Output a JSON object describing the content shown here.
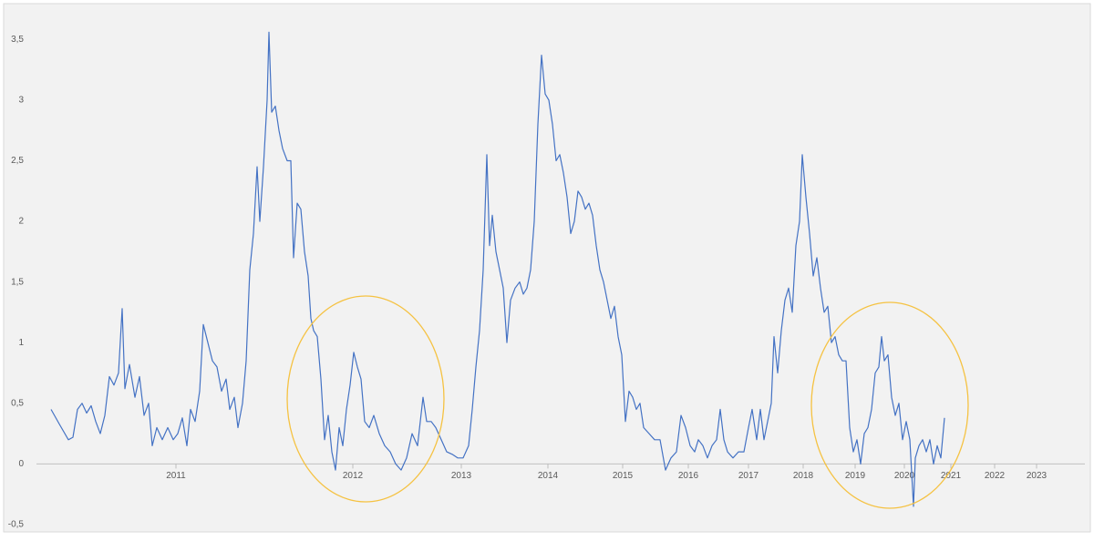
{
  "chart_data": {
    "type": "line",
    "x": [
      56,
      65,
      75,
      80,
      85,
      90,
      95,
      100,
      105,
      110,
      115,
      120,
      125,
      130,
      134,
      137,
      142,
      148,
      153,
      158,
      163,
      167,
      172,
      178,
      184,
      190,
      195,
      200,
      205,
      209,
      214,
      219,
      223,
      228,
      233,
      238,
      243,
      248,
      252,
      257,
      261,
      266,
      270,
      274,
      278,
      282,
      285,
      289,
      293,
      295,
      298,
      302,
      306,
      310,
      315,
      319,
      322,
      326,
      330,
      334,
      338,
      341,
      344,
      348,
      352,
      356,
      360,
      364,
      368,
      372,
      376,
      380,
      384,
      388,
      392,
      396,
      400,
      405,
      410,
      416,
      422,
      428,
      434,
      440,
      446,
      452,
      458,
      464,
      468,
      473,
      478,
      484,
      490,
      496,
      502,
      508,
      514,
      518,
      522,
      526,
      530,
      534,
      537,
      540,
      544,
      548,
      552,
      556,
      560,
      565,
      570,
      574,
      578,
      582,
      586,
      590,
      594,
      598,
      602,
      606,
      610,
      614,
      618,
      622,
      626,
      630,
      634,
      638,
      642,
      646,
      650,
      654,
      658,
      662,
      666,
      670,
      674,
      678,
      682,
      686,
      690,
      694,
      698,
      702,
      706,
      712,
      718,
      724,
      730,
      736,
      742,
      747,
      752,
      757,
      762,
      766,
      771,
      776,
      781,
      786,
      790,
      794,
      798,
      804,
      810,
      816,
      821,
      825,
      830,
      834,
      838,
      842,
      846,
      849,
      853,
      857,
      861,
      865,
      869,
      873,
      877,
      880,
      884,
      888,
      892,
      896,
      900,
      904,
      908,
      912,
      916,
      920,
      924,
      928,
      932,
      936,
      940,
      944,
      948,
      952,
      956,
      960,
      964,
      967,
      970,
      974,
      978,
      982,
      986,
      990,
      994,
      998,
      1002,
      1004,
      1008,
      1012,
      1016,
      1020,
      1024,
      1028,
      1032,
      1036
    ],
    "series": [
      {
        "color": "#4472c4",
        "values": [
          0.45,
          0.33,
          0.2,
          0.22,
          0.45,
          0.5,
          0.42,
          0.48,
          0.35,
          0.25,
          0.4,
          0.72,
          0.65,
          0.75,
          1.28,
          0.62,
          0.82,
          0.55,
          0.72,
          0.4,
          0.5,
          0.15,
          0.3,
          0.2,
          0.3,
          0.2,
          0.25,
          0.38,
          0.15,
          0.45,
          0.35,
          0.6,
          1.15,
          1.0,
          0.85,
          0.8,
          0.6,
          0.7,
          0.45,
          0.55,
          0.3,
          0.5,
          0.85,
          1.6,
          1.9,
          2.45,
          2.0,
          2.45,
          3.0,
          3.56,
          2.9,
          2.95,
          2.75,
          2.6,
          2.5,
          2.5,
          1.7,
          2.15,
          2.1,
          1.75,
          1.55,
          1.2,
          1.1,
          1.05,
          0.7,
          0.2,
          0.4,
          0.1,
          -0.05,
          0.3,
          0.15,
          0.45,
          0.65,
          0.92,
          0.8,
          0.7,
          0.35,
          0.3,
          0.4,
          0.25,
          0.15,
          0.1,
          0.0,
          -0.05,
          0.05,
          0.25,
          0.15,
          0.55,
          0.35,
          0.35,
          0.3,
          0.2,
          0.1,
          0.08,
          0.05,
          0.05,
          0.15,
          0.45,
          0.8,
          1.1,
          1.6,
          2.55,
          1.8,
          2.05,
          1.75,
          1.6,
          1.45,
          1.0,
          1.35,
          1.45,
          1.5,
          1.4,
          1.45,
          1.6,
          2.0,
          2.8,
          3.37,
          3.05,
          3.0,
          2.8,
          2.5,
          2.55,
          2.4,
          2.2,
          1.9,
          2.0,
          2.25,
          2.2,
          2.1,
          2.15,
          2.05,
          1.8,
          1.6,
          1.5,
          1.35,
          1.2,
          1.3,
          1.05,
          0.9,
          0.35,
          0.6,
          0.55,
          0.45,
          0.5,
          0.3,
          0.25,
          0.2,
          0.2,
          -0.05,
          0.05,
          0.1,
          0.4,
          0.3,
          0.15,
          0.1,
          0.2,
          0.15,
          0.05,
          0.15,
          0.2,
          0.45,
          0.2,
          0.1,
          0.05,
          0.1,
          0.1,
          0.3,
          0.45,
          0.2,
          0.45,
          0.2,
          0.35,
          0.5,
          1.05,
          0.75,
          1.1,
          1.35,
          1.45,
          1.25,
          1.8,
          2.0,
          2.55,
          2.2,
          1.9,
          1.55,
          1.7,
          1.45,
          1.25,
          1.3,
          1.0,
          1.05,
          0.9,
          0.85,
          0.85,
          0.3,
          0.1,
          0.2,
          0.0,
          0.25,
          0.3,
          0.45,
          0.75,
          0.8,
          1.05,
          0.85,
          0.9,
          0.55,
          0.4,
          0.5,
          0.2,
          0.35,
          0.2,
          -0.35,
          0.05,
          0.15,
          0.2,
          0.1,
          0.2,
          0.0,
          0.15,
          0.05,
          0.38
        ]
      }
    ],
    "xlim": [
      40,
      1200
    ],
    "xticks": [
      {
        "value": 193,
        "label": "2011"
      },
      {
        "value": 387,
        "label": "2012"
      },
      {
        "value": 506,
        "label": "2013"
      },
      {
        "value": 601,
        "label": "2014"
      },
      {
        "value": 683,
        "label": "2015"
      },
      {
        "value": 755,
        "label": "2016"
      },
      {
        "value": 821,
        "label": "2017"
      },
      {
        "value": 881,
        "label": "2018"
      },
      {
        "value": 938,
        "label": "2019"
      },
      {
        "value": 992,
        "label": "2020"
      },
      {
        "value": 1043,
        "label": "2021"
      },
      {
        "value": 1091,
        "label": "2022"
      },
      {
        "value": 1137,
        "label": "2023"
      }
    ],
    "ylim": [
      -0.5,
      3.75
    ],
    "yticks": [
      {
        "value": -0.5,
        "label": "-0,5"
      },
      0,
      {
        "value": 0.5,
        "label": "0,5"
      },
      1,
      {
        "value": 1.5,
        "label": "1,5"
      },
      2,
      {
        "value": 2.5,
        "label": "2,5"
      },
      3,
      {
        "value": 3.5,
        "label": "3,5"
      }
    ]
  }
}
